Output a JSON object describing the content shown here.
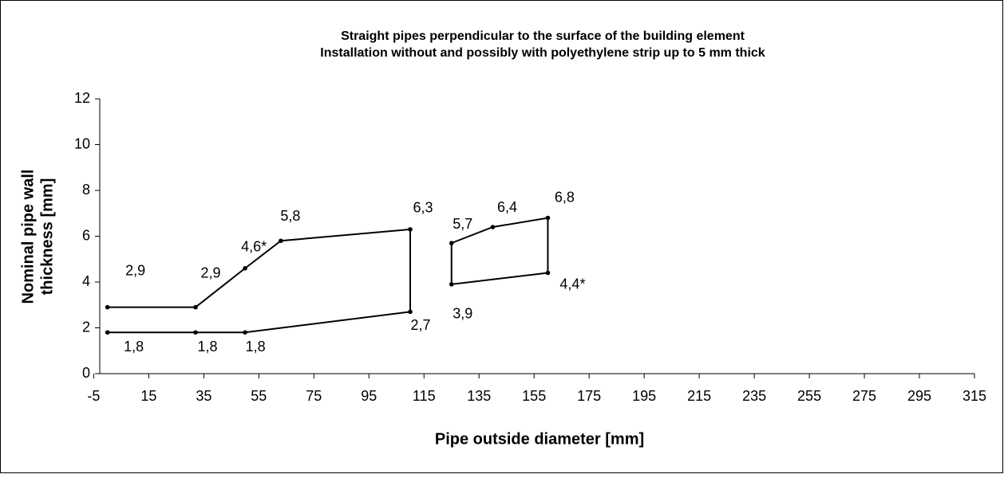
{
  "chart_data": {
    "type": "line",
    "title": [
      "Straight pipes perpendicular to the surface of the building element",
      "Installation without and possibly with polyethylene strip up to 5 mm thick"
    ],
    "xlabel": "Pipe outside diameter [mm]",
    "ylabel": [
      "Nominal pipe wall",
      "thickness [mm]"
    ],
    "xlim": [
      -5,
      315
    ],
    "xticks": [
      -5,
      15,
      35,
      55,
      75,
      95,
      115,
      135,
      155,
      175,
      195,
      215,
      235,
      255,
      275,
      295,
      315
    ],
    "ylim": [
      0,
      12
    ],
    "yticks": [
      0,
      2,
      4,
      6,
      8,
      10,
      12
    ],
    "series": [
      {
        "color": "#000000",
        "x": [
          0,
          32,
          50,
          63,
          110,
          110,
          50,
          32,
          0
        ],
        "values": [
          2.9,
          2.9,
          4.6,
          5.8,
          6.3,
          2.7,
          1.8,
          1.8,
          1.8
        ],
        "value_labels": [
          "2,9",
          "2,9",
          "4,6*",
          "5,8",
          "6,3",
          "2,7",
          "1,8",
          "1,8",
          "1,8"
        ]
      },
      {
        "color": "#000000",
        "closed": true,
        "x": [
          125,
          140,
          160,
          160,
          125
        ],
        "values": [
          5.7,
          6.4,
          6.8,
          4.4,
          3.9
        ],
        "value_labels": [
          "5,7",
          "6,4",
          "6,8",
          "4,4*",
          "3,9"
        ]
      }
    ]
  }
}
